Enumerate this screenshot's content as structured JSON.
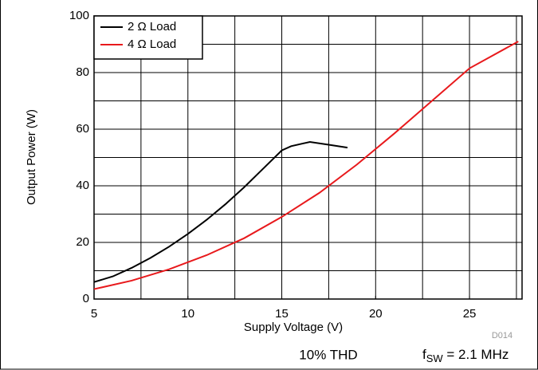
{
  "chart_data": {
    "type": "line",
    "x_label": "Supply Voltage (V)",
    "y_label": "Output Power (W)",
    "series": [
      {
        "name": "2 Ω Load",
        "color": "#000000",
        "x": [
          5,
          6,
          7,
          8,
          9,
          10,
          11,
          12,
          13,
          14,
          15,
          15.5,
          16.5,
          17.5,
          18.5
        ],
        "values": [
          6,
          8,
          11,
          14.5,
          18.5,
          23,
          28,
          33.5,
          39.5,
          46,
          52.5,
          54,
          55.5,
          54.5,
          53.5
        ]
      },
      {
        "name": "4 Ω Load",
        "color": "#e8191c",
        "x": [
          5,
          7,
          9,
          11,
          13,
          15,
          17,
          19,
          21,
          23,
          25,
          27.6
        ],
        "values": [
          3.5,
          6.5,
          10.5,
          15.5,
          21.5,
          29,
          37.5,
          47.5,
          58.5,
          70,
          81.5,
          91
        ]
      }
    ],
    "xlim": [
      5,
      27.8
    ],
    "xticks": [
      5,
      10,
      15,
      20,
      25
    ],
    "xgrid_step": 2.5,
    "ylim": [
      0,
      100
    ],
    "yticks": [
      0,
      20,
      40,
      60,
      80,
      100
    ],
    "ygrid_step": 10,
    "grid": true,
    "legend": "upper left",
    "annotations": {
      "code": "D014",
      "condition": "10% THD",
      "freq_symbol": "f",
      "freq_subscript": "SW",
      "freq_value": " = 2.1 MHz"
    }
  }
}
